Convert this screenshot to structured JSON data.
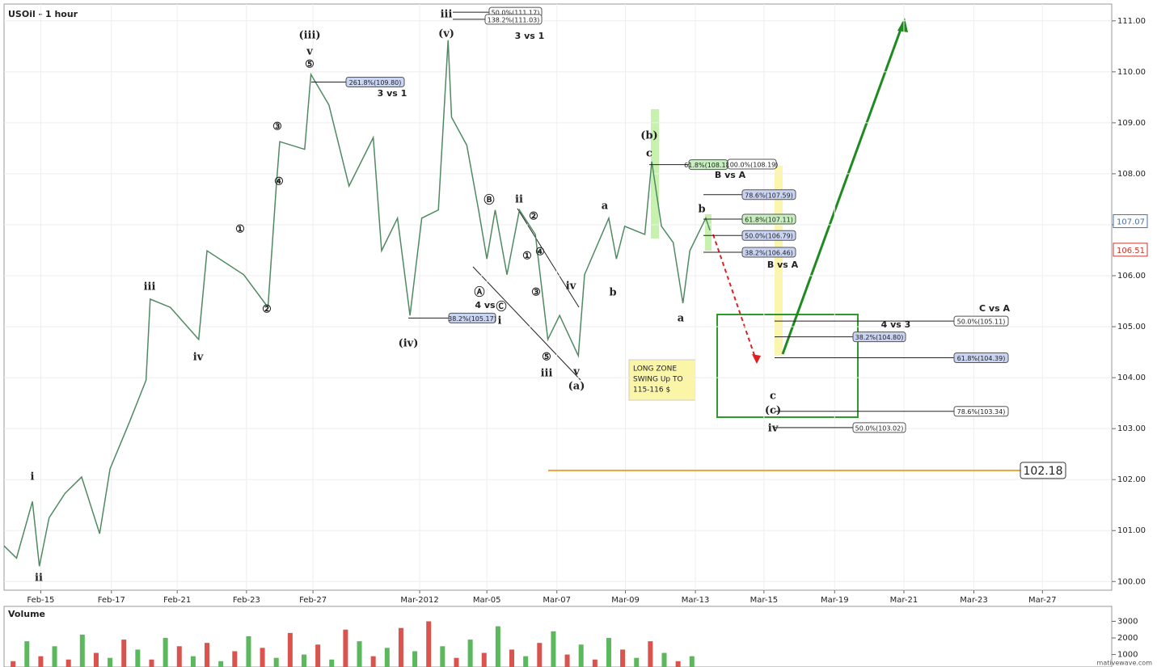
{
  "chart_data": [
    {
      "type": "line",
      "title": "USOil - 1 hour",
      "color": "#4f8a62",
      "x": [
        -0.53,
        -0.35,
        -0.12,
        -0.02,
        0.12,
        0.35,
        0.59,
        0.85,
        1.0,
        1.29,
        1.52,
        1.58,
        1.87,
        2.28,
        2.4,
        2.93,
        3.28,
        3.4,
        3.45,
        3.81,
        3.9,
        4.16,
        4.45,
        4.8,
        4.92,
        5.15,
        5.33,
        5.5,
        5.74,
        5.88,
        5.93,
        6.15,
        6.32,
        6.44,
        6.56,
        6.73,
        6.91,
        7.14,
        7.32,
        7.49,
        7.76,
        7.85,
        8.2,
        8.31,
        8.43,
        8.72,
        8.82,
        8.96,
        9.13,
        9.27,
        9.37,
        9.6,
        9.66
      ],
      "values": [
        100.7,
        100.46,
        101.57,
        100.3,
        101.25,
        101.73,
        102.05,
        100.94,
        102.21,
        103.16,
        103.95,
        105.54,
        105.38,
        104.75,
        106.49,
        106.02,
        105.38,
        107.76,
        108.63,
        108.48,
        109.95,
        109.35,
        107.76,
        108.71,
        106.49,
        107.13,
        105.22,
        107.13,
        107.29,
        110.62,
        109.11,
        108.56,
        107.29,
        106.33,
        107.29,
        106.02,
        107.29,
        106.81,
        104.75,
        105.22,
        104.43,
        106.02,
        107.13,
        106.33,
        106.97,
        106.81,
        108.24,
        106.97,
        106.65,
        105.46,
        106.49,
        107.13,
        106.89
      ],
      "xlim": [
        -0.53,
        15.46
      ],
      "xticks": [
        {
          "value": 0,
          "label": "Feb-15"
        },
        {
          "value": 1.02,
          "label": "Feb-17"
        },
        {
          "value": 1.97,
          "label": "Feb-21"
        },
        {
          "value": 2.97,
          "label": "Feb-23"
        },
        {
          "value": 3.93,
          "label": "Feb-27"
        },
        {
          "value": 5.47,
          "label": "Mar-2012"
        },
        {
          "value": 6.44,
          "label": "Mar-05"
        },
        {
          "value": 7.45,
          "label": "Mar-07"
        },
        {
          "value": 8.44,
          "label": "Mar-09"
        },
        {
          "value": 9.45,
          "label": "Mar-13"
        },
        {
          "value": 10.44,
          "label": "Mar-15"
        },
        {
          "value": 11.46,
          "label": "Mar-19"
        },
        {
          "value": 12.46,
          "label": "Mar-21"
        },
        {
          "value": 13.47,
          "label": "Mar-23"
        },
        {
          "value": 14.46,
          "label": "Mar-27"
        }
      ],
      "ylim": [
        99.83,
        111.33
      ],
      "yticks": [
        {
          "value": 100,
          "label": "100.00"
        },
        {
          "value": 101,
          "label": "101.00"
        },
        {
          "value": 102,
          "label": "102.00"
        },
        {
          "value": 103,
          "label": "103.00"
        },
        {
          "value": 104,
          "label": "104.00"
        },
        {
          "value": 105,
          "label": "105.00"
        },
        {
          "value": 106,
          "label": "106.00"
        },
        {
          "value": 107,
          "label": "107.00"
        },
        {
          "value": 108,
          "label": "108.00"
        },
        {
          "value": 109,
          "label": "109.00"
        },
        {
          "value": 110,
          "label": "110.00"
        },
        {
          "value": 111,
          "label": "111.00"
        }
      ],
      "grid": true,
      "price_flags": [
        {
          "value": 107.07,
          "color": "#4a6fa5"
        },
        {
          "value": 106.51,
          "color": "#c0392b"
        }
      ],
      "support_level": 102.18,
      "support_color": "#e8a33a",
      "fib_levels": [
        {
          "label": "50.0%(111.17)",
          "value": 111.17,
          "color": "#ffffff"
        },
        {
          "label": "138.2%(111.03)",
          "value": 111.03,
          "color": "#ffffff"
        },
        {
          "label": "261.8%(109.80)",
          "value": 109.8,
          "color": "#c9d3f2"
        },
        {
          "label": "38.2%(105.17)",
          "value": 105.17,
          "color": "#c9d3f2"
        },
        {
          "label": "61.8%(108.18)",
          "value": 108.18,
          "color": "#c8efc0"
        },
        {
          "label": "100.0%(108.19)",
          "value": 108.19,
          "color": "#ffffff"
        },
        {
          "label": "78.6%(107.59)",
          "value": 107.59,
          "color": "#c9d3f2"
        },
        {
          "label": "61.8%(107.11)",
          "value": 107.11,
          "color": "#c8efc0"
        },
        {
          "label": "50.0%(106.79)",
          "value": 106.79,
          "color": "#c9d3f2"
        },
        {
          "label": "38.2%(106.46)",
          "value": 106.46,
          "color": "#c9d3f2"
        },
        {
          "label": "50.0%(105.11)",
          "value": 105.11,
          "color": "#ffffff"
        },
        {
          "label": "38.2%(104.80)",
          "value": 104.8,
          "color": "#c9d3f2"
        },
        {
          "label": "61.8%(104.39)",
          "value": 104.39,
          "color": "#c9d3f2"
        },
        {
          "label": "78.6%(103.34)",
          "value": 103.34,
          "color": "#ffffff"
        },
        {
          "label": "50.0%(103.02)",
          "value": 103.02,
          "color": "#ffffff"
        }
      ],
      "wave_labels": [
        "ii",
        "i",
        "iii",
        "iv",
        "①",
        "②",
        "③",
        "④",
        "⑤",
        "v",
        "(iii)",
        "(iv)",
        "(v)",
        "iii",
        "Ⓐ",
        "Ⓑ",
        "ii",
        "②",
        "①",
        "④",
        "③",
        "Ⓒ",
        "i",
        "4 vs",
        "iv",
        "⑤",
        "iii",
        "v",
        "(a)",
        "a",
        "b",
        "(b)",
        "c",
        "b",
        "a",
        "3 vs 1",
        "3 vs 1",
        "B vs A",
        "B vs A",
        "C vs A",
        "4 vs 3",
        "c",
        "(c)",
        "iv"
      ],
      "note": [
        "LONG ZONE",
        "SWING Up TO",
        "115-116 $"
      ]
    },
    {
      "type": "bar",
      "title": "Volume",
      "x": [
        -0.4,
        -0.2,
        0,
        0.2,
        0.4,
        0.6,
        0.8,
        1,
        1.2,
        1.4,
        1.6,
        1.8,
        2,
        2.2,
        2.4,
        2.6,
        2.8,
        3,
        3.2,
        3.4,
        3.6,
        3.8,
        4,
        4.2,
        4.4,
        4.6,
        4.8,
        5,
        5.2,
        5.4,
        5.6,
        5.8,
        6,
        6.2,
        6.4,
        6.6,
        6.8,
        7,
        7.2,
        7.4,
        7.6,
        7.8,
        8,
        8.2,
        8.4,
        8.6,
        8.8,
        9,
        9.2,
        9.4
      ],
      "values": [
        600,
        1800,
        900,
        1500,
        700,
        2200,
        1100,
        800,
        1900,
        1300,
        700,
        2000,
        1500,
        900,
        1700,
        600,
        1200,
        2100,
        1400,
        800,
        2300,
        1000,
        1600,
        700,
        2500,
        1800,
        900,
        1400,
        2600,
        1200,
        3000,
        1500,
        800,
        1900,
        1100,
        2700,
        1300,
        900,
        1700,
        2400,
        1000,
        1600,
        700,
        2000,
        1300,
        800,
        1800,
        1100,
        600,
        900
      ],
      "colors": [
        "#d9534f",
        "#5cb85c",
        "#d9534f",
        "#5cb85c",
        "#d9534f",
        "#5cb85c",
        "#d9534f",
        "#5cb85c",
        "#d9534f",
        "#5cb85c",
        "#d9534f",
        "#5cb85c",
        "#d9534f",
        "#5cb85c",
        "#d9534f",
        "#5cb85c",
        "#d9534f",
        "#5cb85c",
        "#d9534f",
        "#5cb85c",
        "#d9534f",
        "#5cb85c",
        "#d9534f",
        "#5cb85c",
        "#d9534f",
        "#5cb85c",
        "#d9534f",
        "#5cb85c",
        "#d9534f",
        "#5cb85c",
        "#d9534f",
        "#5cb85c",
        "#d9534f",
        "#5cb85c",
        "#d9534f",
        "#5cb85c",
        "#d9534f",
        "#5cb85c",
        "#d9534f",
        "#5cb85c",
        "#d9534f",
        "#5cb85c",
        "#d9534f",
        "#5cb85c",
        "#d9534f",
        "#5cb85c",
        "#d9534f",
        "#5cb85c",
        "#d9534f",
        "#5cb85c"
      ],
      "xlim": [
        -0.53,
        15.46
      ],
      "ylim": [
        250,
        3900
      ],
      "yticks": [
        1000,
        2000,
        3000
      ]
    }
  ],
  "watermark": "mativewave.com"
}
